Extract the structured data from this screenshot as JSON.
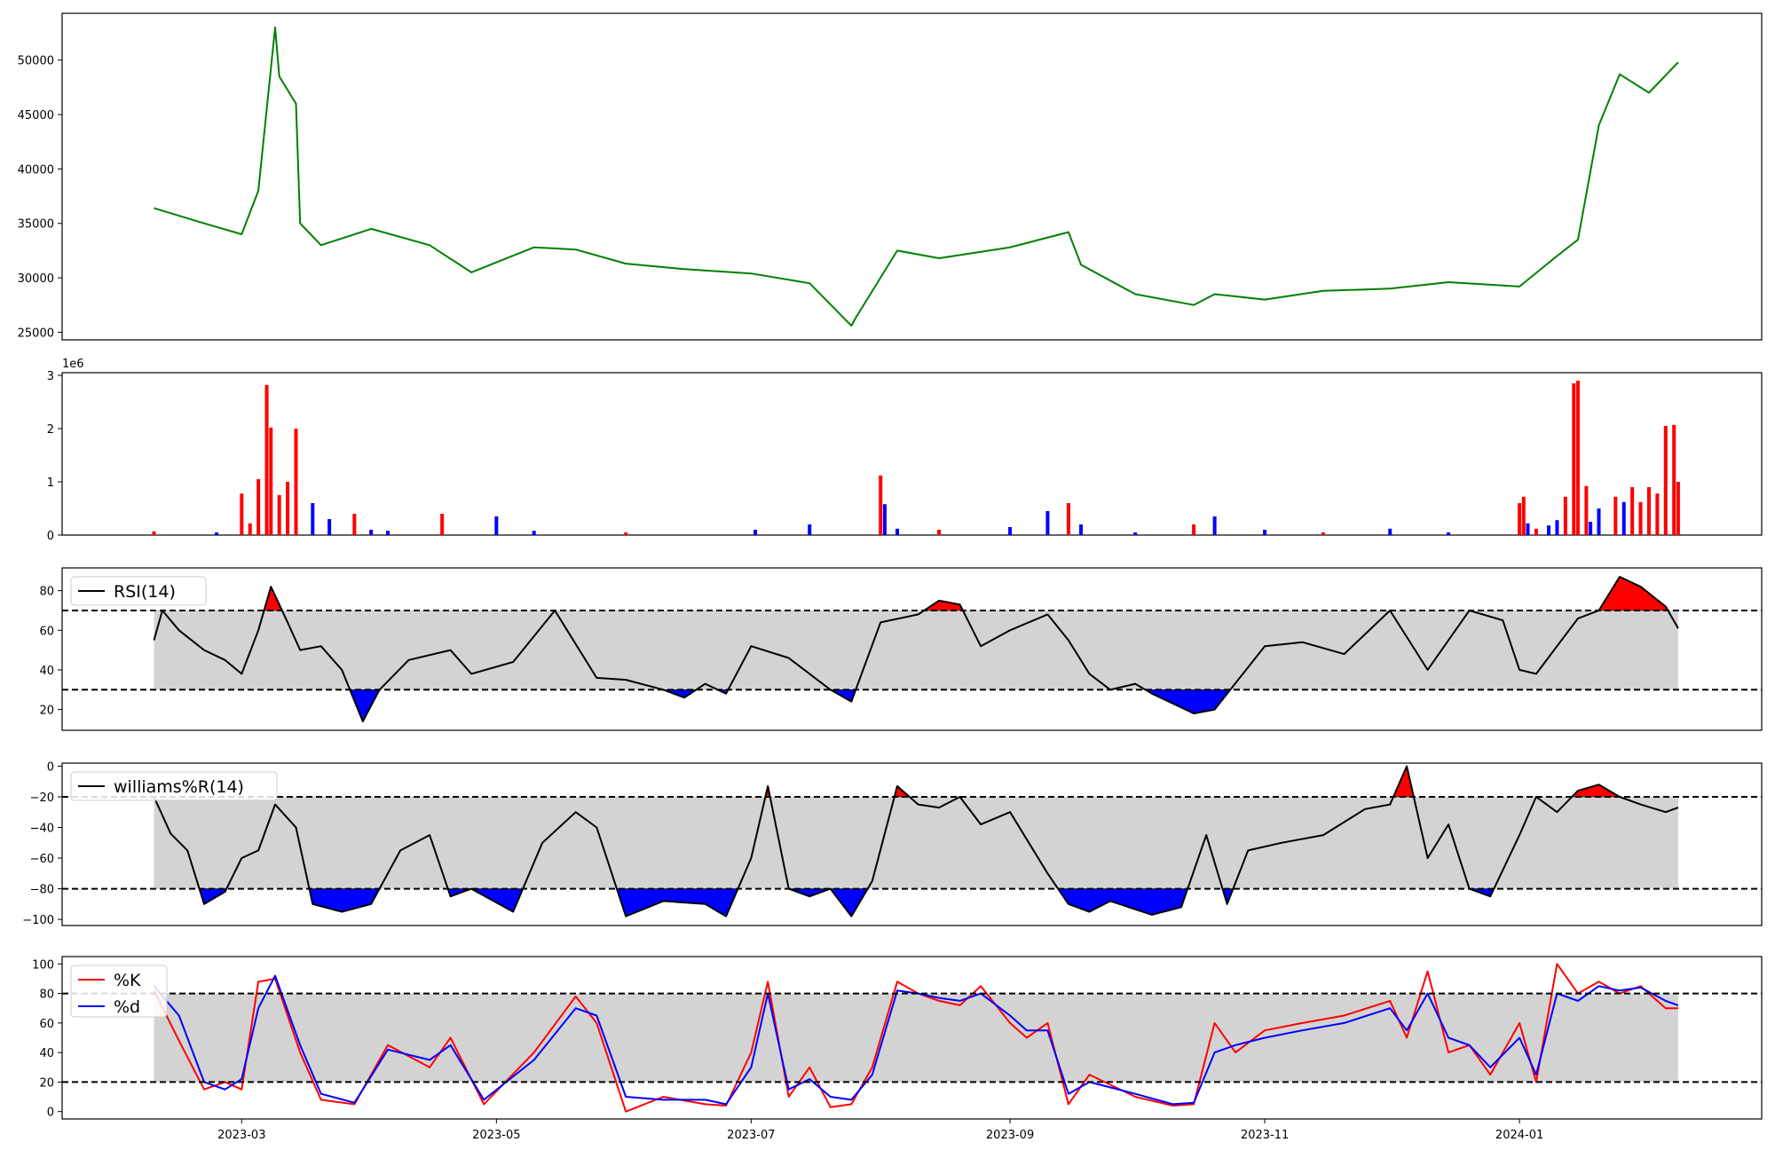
{
  "chart_data": [
    {
      "type": "line",
      "series": [
        {
          "color": "#008000",
          "x": [
            "2023-02-08",
            "2023-02-20",
            "2023-03-01",
            "2023-03-05",
            "2023-03-09",
            "2023-03-10",
            "2023-03-14",
            "2023-03-15",
            "2023-03-20",
            "2023-04-01",
            "2023-04-15",
            "2023-04-25",
            "2023-05-10",
            "2023-05-20",
            "2023-06-01",
            "2023-06-15",
            "2023-07-01",
            "2023-07-15",
            "2023-07-25",
            "2023-07-26",
            "2023-08-05",
            "2023-08-15",
            "2023-09-01",
            "2023-09-15",
            "2023-09-18",
            "2023-10-01",
            "2023-10-15",
            "2023-10-20",
            "2023-11-01",
            "2023-11-15",
            "2023-12-01",
            "2023-12-15",
            "2024-01-01",
            "2024-01-10",
            "2024-01-15",
            "2024-01-20",
            "2024-01-25",
            "2024-02-01",
            "2024-02-08"
          ],
          "y": [
            36400,
            35000,
            34000,
            38000,
            53000,
            48500,
            46000,
            35000,
            33000,
            34500,
            33000,
            30500,
            32800,
            32600,
            31300,
            30800,
            30400,
            29500,
            25600,
            26300,
            32500,
            31800,
            32800,
            34200,
            31200,
            28500,
            27500,
            28500,
            28000,
            28800,
            29000,
            29600,
            29200,
            32000,
            33500,
            44000,
            48700,
            47000,
            49800
          ]
        }
      ],
      "xlim": [
        "2023-01-17",
        "2024-02-28"
      ],
      "ylim": [
        24300,
        54300
      ],
      "yticks": [
        "25000",
        "30000",
        "35000",
        "40000",
        "45000",
        "50000"
      ]
    },
    {
      "type": "bar",
      "scale_label": "1e6",
      "ylim": [
        0,
        3.05
      ],
      "yticks": [
        "0",
        "1",
        "2",
        "3"
      ],
      "up_color": "#ff0000",
      "down_color": "#0000ff",
      "series": [
        {
          "name": "",
          "x": [
            "2023-02-08",
            "2023-02-23",
            "2023-03-01",
            "2023-03-03",
            "2023-03-05",
            "2023-03-07",
            "2023-03-08",
            "2023-03-10",
            "2023-03-12",
            "2023-03-14",
            "2023-03-18",
            "2023-03-22",
            "2023-03-28",
            "2023-04-01",
            "2023-04-05",
            "2023-04-18",
            "2023-05-01",
            "2023-05-10",
            "2023-06-01",
            "2023-07-02",
            "2023-07-15",
            "2023-08-01",
            "2023-08-02",
            "2023-08-05",
            "2023-08-15",
            "2023-09-01",
            "2023-09-10",
            "2023-09-15",
            "2023-09-18",
            "2023-10-01",
            "2023-10-15",
            "2023-10-20",
            "2023-11-01",
            "2023-11-15",
            "2023-12-01",
            "2023-12-15",
            "2024-01-01",
            "2024-01-02",
            "2024-01-03",
            "2024-01-05",
            "2024-01-08",
            "2024-01-10",
            "2024-01-12",
            "2024-01-14",
            "2024-01-15",
            "2024-01-17",
            "2024-01-18",
            "2024-01-20",
            "2024-01-24",
            "2024-01-26",
            "2024-01-28",
            "2024-01-30",
            "2024-02-01",
            "2024-02-03",
            "2024-02-05",
            "2024-02-07",
            "2024-02-08"
          ],
          "values": [
            0.07,
            0.05,
            0.78,
            0.22,
            1.05,
            2.82,
            2.02,
            0.75,
            1.0,
            2.0,
            0.6,
            0.3,
            0.4,
            0.1,
            0.08,
            0.4,
            0.35,
            0.08,
            0.05,
            0.1,
            0.2,
            1.12,
            0.58,
            0.12,
            0.1,
            0.15,
            0.45,
            0.6,
            0.2,
            0.05,
            0.2,
            0.35,
            0.1,
            0.05,
            0.12,
            0.05,
            0.6,
            0.72,
            0.22,
            0.12,
            0.18,
            0.28,
            0.72,
            2.85,
            2.9,
            0.92,
            0.25,
            0.5,
            0.72,
            0.62,
            0.9,
            0.62,
            0.9,
            0.78,
            2.05,
            2.07,
            1.0
          ]
        }
      ]
    },
    {
      "type": "line",
      "legend": [
        "RSI(14)"
      ],
      "ylim": [
        9.5,
        91.5
      ],
      "yticks": [
        "20",
        "40",
        "60",
        "80"
      ],
      "thresholds": [
        30,
        70
      ],
      "series": [
        {
          "name": "RSI(14)",
          "color": "#000000",
          "x": [
            "2023-02-08",
            "2023-02-10",
            "2023-02-14",
            "2023-02-20",
            "2023-02-25",
            "2023-03-01",
            "2023-03-05",
            "2023-03-08",
            "2023-03-12",
            "2023-03-15",
            "2023-03-20",
            "2023-03-25",
            "2023-03-30",
            "2023-04-03",
            "2023-04-10",
            "2023-04-20",
            "2023-04-25",
            "2023-05-05",
            "2023-05-15",
            "2023-05-25",
            "2023-06-01",
            "2023-06-10",
            "2023-06-15",
            "2023-06-20",
            "2023-06-25",
            "2023-07-01",
            "2023-07-10",
            "2023-07-20",
            "2023-07-25",
            "2023-08-01",
            "2023-08-10",
            "2023-08-15",
            "2023-08-20",
            "2023-08-25",
            "2023-09-01",
            "2023-09-10",
            "2023-09-15",
            "2023-09-20",
            "2023-09-25",
            "2023-10-01",
            "2023-10-05",
            "2023-10-15",
            "2023-10-20",
            "2023-11-01",
            "2023-11-10",
            "2023-11-20",
            "2023-12-01",
            "2023-12-10",
            "2023-12-20",
            "2023-12-28",
            "2024-01-01",
            "2024-01-05",
            "2024-01-10",
            "2024-01-15",
            "2024-01-20",
            "2024-01-25",
            "2024-01-30",
            "2024-02-05",
            "2024-02-08"
          ],
          "y": [
            55,
            70,
            60,
            50,
            45,
            38,
            60,
            82,
            64,
            50,
            52,
            40,
            14,
            30,
            45,
            50,
            38,
            44,
            70,
            36,
            35,
            30,
            26,
            33,
            28,
            52,
            46,
            30,
            24,
            64,
            68,
            75,
            73,
            52,
            60,
            68,
            55,
            38,
            30,
            33,
            28,
            18,
            20,
            52,
            54,
            48,
            70,
            40,
            70,
            65,
            40,
            38,
            52,
            66,
            70,
            87,
            82,
            72,
            61
          ]
        }
      ]
    },
    {
      "type": "line",
      "legend": [
        "williams%R(14)"
      ],
      "ylim": [
        -104,
        2
      ],
      "yticks": [
        "0",
        "−20",
        "−40",
        "−60",
        "−80",
        "−100"
      ],
      "thresholds": [
        -20,
        -80
      ],
      "series": [
        {
          "name": "williams%R(14)",
          "color": "#000000",
          "x": [
            "2023-02-08",
            "2023-02-12",
            "2023-02-16",
            "2023-02-20",
            "2023-02-25",
            "2023-03-01",
            "2023-03-05",
            "2023-03-09",
            "2023-03-14",
            "2023-03-18",
            "2023-03-25",
            "2023-04-01",
            "2023-04-08",
            "2023-04-15",
            "2023-04-20",
            "2023-04-25",
            "2023-05-05",
            "2023-05-12",
            "2023-05-20",
            "2023-05-25",
            "2023-06-01",
            "2023-06-10",
            "2023-06-20",
            "2023-06-25",
            "2023-07-01",
            "2023-07-05",
            "2023-07-10",
            "2023-07-15",
            "2023-07-20",
            "2023-07-25",
            "2023-07-30",
            "2023-08-05",
            "2023-08-10",
            "2023-08-15",
            "2023-08-20",
            "2023-08-25",
            "2023-09-01",
            "2023-09-10",
            "2023-09-15",
            "2023-09-20",
            "2023-09-25",
            "2023-10-05",
            "2023-10-12",
            "2023-10-18",
            "2023-10-23",
            "2023-10-28",
            "2023-11-05",
            "2023-11-15",
            "2023-11-25",
            "2023-12-01",
            "2023-12-05",
            "2023-12-10",
            "2023-12-15",
            "2023-12-20",
            "2023-12-25",
            "2024-01-01",
            "2024-01-05",
            "2024-01-10",
            "2024-01-15",
            "2024-01-20",
            "2024-01-25",
            "2024-01-30",
            "2024-02-05",
            "2024-02-08"
          ],
          "y": [
            -20,
            -44,
            -55,
            -90,
            -82,
            -60,
            -55,
            -25,
            -40,
            -90,
            -95,
            -90,
            -55,
            -45,
            -85,
            -80,
            -95,
            -50,
            -30,
            -40,
            -98,
            -88,
            -90,
            -98,
            -60,
            -13,
            -80,
            -85,
            -80,
            -98,
            -75,
            -13,
            -25,
            -27,
            -20,
            -38,
            -30,
            -70,
            -90,
            -95,
            -88,
            -97,
            -92,
            -45,
            -90,
            -55,
            -50,
            -45,
            -28,
            -25,
            0,
            -60,
            -38,
            -80,
            -85,
            -45,
            -20,
            -30,
            -16,
            -12,
            -20,
            -25,
            -30,
            -27
          ]
        }
      ]
    },
    {
      "type": "line",
      "legend": [
        "%K",
        "%d"
      ],
      "ylim": [
        -5,
        105
      ],
      "yticks": [
        "0",
        "20",
        "40",
        "60",
        "80",
        "100"
      ],
      "thresholds": [
        20,
        80
      ],
      "series": [
        {
          "name": "%K",
          "color": "#ff0000",
          "x": [
            "2023-02-08",
            "2023-02-14",
            "2023-02-20",
            "2023-02-25",
            "2023-03-01",
            "2023-03-05",
            "2023-03-09",
            "2023-03-15",
            "2023-03-20",
            "2023-03-28",
            "2023-04-05",
            "2023-04-15",
            "2023-04-20",
            "2023-04-28",
            "2023-05-10",
            "2023-05-20",
            "2023-05-25",
            "2023-06-01",
            "2023-06-10",
            "2023-06-20",
            "2023-06-25",
            "2023-07-01",
            "2023-07-05",
            "2023-07-10",
            "2023-07-15",
            "2023-07-20",
            "2023-07-25",
            "2023-07-30",
            "2023-08-05",
            "2023-08-10",
            "2023-08-15",
            "2023-08-20",
            "2023-08-25",
            "2023-09-01",
            "2023-09-05",
            "2023-09-10",
            "2023-09-15",
            "2023-09-20",
            "2023-10-01",
            "2023-10-10",
            "2023-10-15",
            "2023-10-20",
            "2023-10-25",
            "2023-11-01",
            "2023-11-10",
            "2023-11-20",
            "2023-12-01",
            "2023-12-05",
            "2023-12-10",
            "2023-12-15",
            "2023-12-20",
            "2023-12-25",
            "2024-01-01",
            "2024-01-05",
            "2024-01-10",
            "2024-01-15",
            "2024-01-20",
            "2024-01-25",
            "2024-01-30",
            "2024-02-05",
            "2024-02-08"
          ],
          "y": [
            82,
            48,
            15,
            20,
            15,
            88,
            90,
            40,
            8,
            5,
            45,
            30,
            50,
            5,
            40,
            78,
            60,
            0,
            10,
            5,
            4,
            40,
            88,
            10,
            30,
            3,
            5,
            30,
            88,
            80,
            75,
            72,
            85,
            60,
            50,
            60,
            5,
            25,
            10,
            4,
            5,
            60,
            40,
            55,
            60,
            65,
            75,
            50,
            95,
            40,
            45,
            25,
            60,
            20,
            100,
            80,
            88,
            80,
            85,
            70,
            70
          ]
        },
        {
          "name": "%d",
          "color": "#0000ff",
          "x": [
            "2023-02-08",
            "2023-02-14",
            "2023-02-20",
            "2023-02-25",
            "2023-03-01",
            "2023-03-05",
            "2023-03-09",
            "2023-03-15",
            "2023-03-20",
            "2023-03-28",
            "2023-04-05",
            "2023-04-15",
            "2023-04-20",
            "2023-04-28",
            "2023-05-10",
            "2023-05-20",
            "2023-05-25",
            "2023-06-01",
            "2023-06-10",
            "2023-06-20",
            "2023-06-25",
            "2023-07-01",
            "2023-07-05",
            "2023-07-10",
            "2023-07-15",
            "2023-07-20",
            "2023-07-25",
            "2023-07-30",
            "2023-08-05",
            "2023-08-10",
            "2023-08-15",
            "2023-08-20",
            "2023-08-25",
            "2023-09-01",
            "2023-09-05",
            "2023-09-10",
            "2023-09-15",
            "2023-09-20",
            "2023-10-01",
            "2023-10-10",
            "2023-10-15",
            "2023-10-20",
            "2023-10-25",
            "2023-11-01",
            "2023-11-10",
            "2023-11-20",
            "2023-12-01",
            "2023-12-05",
            "2023-12-10",
            "2023-12-15",
            "2023-12-20",
            "2023-12-25",
            "2024-01-01",
            "2024-01-05",
            "2024-01-10",
            "2024-01-15",
            "2024-01-20",
            "2024-01-25",
            "2024-01-30",
            "2024-02-05",
            "2024-02-08"
          ],
          "y": [
            85,
            65,
            20,
            15,
            22,
            70,
            92,
            45,
            12,
            6,
            42,
            35,
            45,
            8,
            35,
            70,
            65,
            10,
            8,
            8,
            5,
            30,
            80,
            15,
            22,
            10,
            8,
            25,
            82,
            80,
            77,
            75,
            80,
            65,
            55,
            55,
            12,
            20,
            12,
            5,
            6,
            40,
            45,
            50,
            55,
            60,
            70,
            55,
            80,
            50,
            45,
            30,
            50,
            25,
            80,
            75,
            85,
            82,
            84,
            75,
            72
          ]
        }
      ]
    }
  ],
  "x_axis": {
    "ticks": [
      "2023-03",
      "2023-05",
      "2023-07",
      "2023-09",
      "2023-11",
      "2024-01"
    ]
  }
}
